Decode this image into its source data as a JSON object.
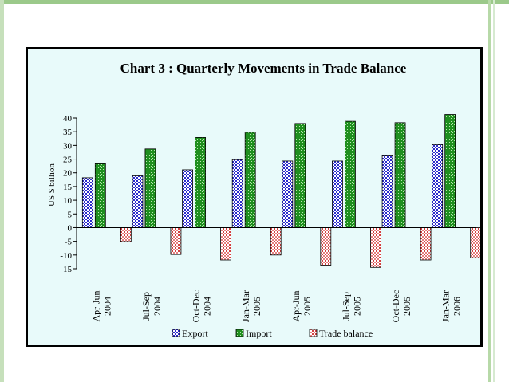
{
  "chart_data": {
    "type": "bar",
    "title": "Chart 3 : Quarterly Movements in Trade Balance",
    "ylabel": "US $ billion",
    "xlabel": "",
    "ylim": [
      -15,
      40
    ],
    "yticks": [
      40,
      35,
      30,
      25,
      20,
      15,
      10,
      5,
      0,
      -5,
      -10,
      -15
    ],
    "categories": [
      [
        "Apr-Jun",
        "2004"
      ],
      [
        "Jul-Sep",
        "2004"
      ],
      [
        "Oct-Dec",
        "2004"
      ],
      [
        "Jan-Mar",
        "2005"
      ],
      [
        "Apr-Jun",
        "2005"
      ],
      [
        "Jul-Sep",
        "2005"
      ],
      [
        "Oct-Dec",
        "2005"
      ],
      [
        "Jan-Mar",
        "2006"
      ]
    ],
    "series": [
      {
        "name": "Export",
        "color": "#2b2bcc",
        "values": [
          18.2,
          18.9,
          21.1,
          24.8,
          24.3,
          24.3,
          26.5,
          30.3
        ]
      },
      {
        "name": "Import",
        "color": "#1f8f1f",
        "values": [
          23.3,
          28.7,
          32.9,
          34.8,
          38.0,
          38.8,
          38.3,
          41.3
        ]
      },
      {
        "name": "Trade balance",
        "color": "#d34040",
        "values": [
          -5.1,
          -9.8,
          -11.8,
          -10.0,
          -13.7,
          -14.5,
          -11.8,
          -11.0
        ]
      }
    ],
    "legend_position": "bottom",
    "grid": false
  }
}
